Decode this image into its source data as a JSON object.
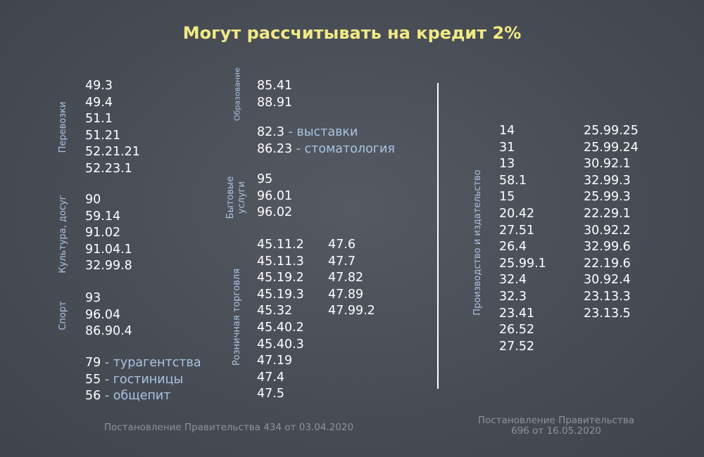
{
  "title": "Могут рассчитывать на кредит 2%",
  "left": {
    "transport": {
      "label": "Перевозки",
      "codes": [
        "49.3",
        "49.4",
        "51.1",
        "51.21",
        "52.21.21",
        "52.23.1"
      ]
    },
    "culture": {
      "label": "Культура, досуг",
      "codes": [
        "90",
        "59.14",
        "91.02",
        "91.04.1",
        "32.99.8"
      ]
    },
    "sport": {
      "label": "Спорт",
      "codes": [
        "93",
        "96.04",
        "86.90.4"
      ]
    },
    "misc": [
      {
        "code": "79",
        "desc": " - турагентства"
      },
      {
        "code": "55",
        "desc": " - гостиницы"
      },
      {
        "code": "56",
        "desc": " - общепит"
      }
    ]
  },
  "middle": {
    "education": {
      "label": "Образование",
      "codes": [
        "85.41",
        "88.91"
      ]
    },
    "extra": [
      {
        "code": "82.3",
        "desc": " - выставки"
      },
      {
        "code": "86.23",
        "desc": " - стоматология"
      }
    ],
    "household": {
      "label_line1": "Бытовые",
      "label_line2": "услуги",
      "codes": [
        "95",
        "96.01",
        "96.02"
      ]
    },
    "retail": {
      "label": "Розничная торговля",
      "codes_col1": [
        "45.11.2",
        "45.11.3",
        "45.19.2",
        "45.19.3",
        "45.32",
        "45.40.2",
        "45.40.3",
        "47.19",
        "47.4",
        "47.5"
      ],
      "codes_col2": [
        "47.6",
        "47.7",
        "47.82",
        "47.89",
        "47.99.2"
      ]
    }
  },
  "right": {
    "production": {
      "label": "Производство и издательство",
      "codes_col1": [
        "14",
        "31",
        "13",
        "58.1",
        "15",
        "20.42",
        "27.51",
        "26.4",
        "25.99.1",
        "32.4",
        "32.3",
        "23.41",
        "26.52",
        "27.52"
      ],
      "codes_col2": [
        "25.99.25",
        "25.99.24",
        "30.92.1",
        "32.99.3",
        "25.99.3",
        "22.29.1",
        "30.92.2",
        "32.99.6",
        "22.19.6",
        "30.92.4",
        "23.13.3",
        "23.13.5"
      ]
    }
  },
  "footer_left": "Постановление Правительства 434 от 03.04.2020",
  "footer_right_line1": "Постановление Правительства",
  "footer_right_line2": "696 от 16.05.2020"
}
